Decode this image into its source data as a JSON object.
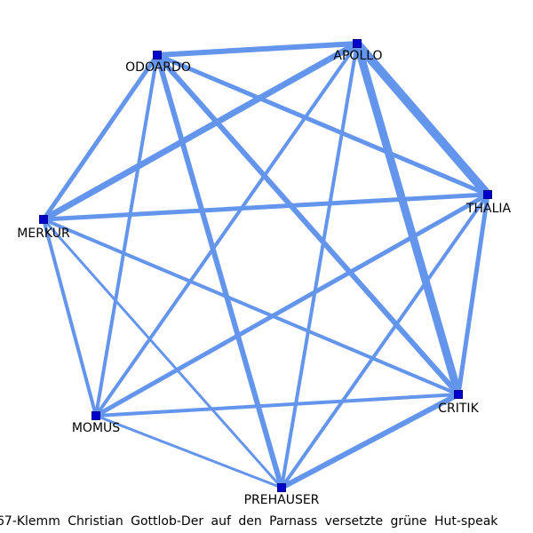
{
  "caption": "67-Klemm Christian Gottlob-Der auf den Parnass versetzte grüne Hut-speak",
  "colors": {
    "edge": "#6495ED",
    "node_fill": "#0000CD",
    "node_stroke": "#00008B",
    "label": "#000000"
  },
  "nodes": [
    {
      "id": "APOLLO",
      "label": "APOLLO"
    },
    {
      "id": "ODOARDO",
      "label": "ODOARDO"
    },
    {
      "id": "MERKUR",
      "label": "MERKUR"
    },
    {
      "id": "MOMUS",
      "label": "MOMUS"
    },
    {
      "id": "PREHAUSER",
      "label": "PREHAUSER"
    },
    {
      "id": "CRITIK",
      "label": "CRITIK"
    },
    {
      "id": "THALIA",
      "label": "THALIA"
    }
  ],
  "edges": [
    {
      "source": "APOLLO",
      "target": "THALIA",
      "weight": 10
    },
    {
      "source": "APOLLO",
      "target": "CRITIK",
      "weight": 9
    },
    {
      "source": "APOLLO",
      "target": "MERKUR",
      "weight": 7
    },
    {
      "source": "APOLLO",
      "target": "ODOARDO",
      "weight": 6
    },
    {
      "source": "APOLLO",
      "target": "MOMUS",
      "weight": 4
    },
    {
      "source": "APOLLO",
      "target": "PREHAUSER",
      "weight": 4
    },
    {
      "source": "ODOARDO",
      "target": "PREHAUSER",
      "weight": 6
    },
    {
      "source": "ODOARDO",
      "target": "CRITIK",
      "weight": 6
    },
    {
      "source": "ODOARDO",
      "target": "THALIA",
      "weight": 5
    },
    {
      "source": "ODOARDO",
      "target": "MERKUR",
      "weight": 5
    },
    {
      "source": "ODOARDO",
      "target": "MOMUS",
      "weight": 4
    },
    {
      "source": "MERKUR",
      "target": "THALIA",
      "weight": 5
    },
    {
      "source": "MERKUR",
      "target": "CRITIK",
      "weight": 4
    },
    {
      "source": "MERKUR",
      "target": "MOMUS",
      "weight": 4
    },
    {
      "source": "MERKUR",
      "target": "PREHAUSER",
      "weight": 3
    },
    {
      "source": "THALIA",
      "target": "CRITIK",
      "weight": 5
    },
    {
      "source": "THALIA",
      "target": "MOMUS",
      "weight": 5
    },
    {
      "source": "THALIA",
      "target": "PREHAUSER",
      "weight": 4
    },
    {
      "source": "CRITIK",
      "target": "PREHAUSER",
      "weight": 6
    },
    {
      "source": "CRITIK",
      "target": "MOMUS",
      "weight": 4
    },
    {
      "source": "MOMUS",
      "target": "PREHAUSER",
      "weight": 3
    }
  ]
}
